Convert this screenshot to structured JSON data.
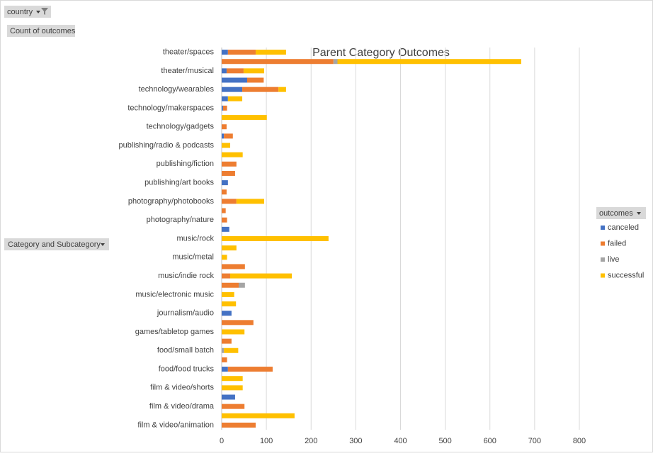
{
  "chart_data": {
    "type": "bar",
    "orientation": "horizontal",
    "stacked": true,
    "title": "Parent Category Outcomes",
    "filter_button": "country",
    "values_field": "Count of outcomes",
    "axis_field": "Category and Subcategory",
    "legend_title": "outcomes",
    "categories": [
      "theater/spaces",
      null,
      "theater/musical",
      null,
      "technology/wearables",
      null,
      "technology/makerspaces",
      null,
      "technology/gadgets",
      null,
      "publishing/radio & podcasts",
      null,
      "publishing/fiction",
      null,
      "publishing/art books",
      null,
      "photography/photobooks",
      null,
      "photography/nature",
      null,
      "music/rock",
      null,
      "music/metal",
      null,
      "music/indie rock",
      null,
      "music/electronic music",
      null,
      "journalism/audio",
      null,
      "games/tabletop games",
      null,
      "food/small batch",
      null,
      "food/food trucks",
      null,
      "film & video/shorts",
      null,
      "film & video/drama",
      null,
      "film & video/animation"
    ],
    "series": [
      {
        "name": "canceled",
        "color": "#4472c4",
        "values": [
          14,
          0,
          11,
          57,
          46,
          14,
          3,
          0,
          0,
          5,
          0,
          0,
          0,
          0,
          14,
          0,
          0,
          0,
          0,
          17,
          0,
          0,
          0,
          0,
          0,
          0,
          0,
          0,
          22,
          0,
          0,
          0,
          0,
          0,
          14,
          0,
          0,
          30,
          0,
          0,
          0
        ]
      },
      {
        "name": "failed",
        "color": "#ed7d31",
        "values": [
          62,
          250,
          38,
          37,
          81,
          0,
          9,
          0,
          11,
          20,
          0,
          0,
          33,
          30,
          0,
          11,
          33,
          9,
          12,
          0,
          0,
          0,
          0,
          52,
          19,
          38,
          0,
          0,
          0,
          71,
          0,
          22,
          0,
          12,
          100,
          0,
          0,
          0,
          51,
          0,
          76
        ]
      },
      {
        "name": "live",
        "color": "#a5a5a5",
        "values": [
          0,
          9,
          0,
          0,
          0,
          0,
          0,
          0,
          0,
          0,
          0,
          0,
          0,
          0,
          0,
          0,
          0,
          0,
          0,
          0,
          0,
          0,
          0,
          0,
          0,
          14,
          0,
          0,
          0,
          0,
          0,
          0,
          5,
          0,
          0,
          0,
          0,
          0,
          0,
          0,
          0
        ]
      },
      {
        "name": "successful",
        "color": "#ffc000",
        "values": [
          68,
          411,
          46,
          0,
          17,
          32,
          0,
          101,
          0,
          0,
          19,
          47,
          0,
          0,
          0,
          0,
          62,
          0,
          0,
          0,
          239,
          33,
          12,
          0,
          138,
          0,
          28,
          32,
          0,
          0,
          51,
          0,
          32,
          0,
          0,
          47,
          47,
          0,
          0,
          163,
          0
        ]
      }
    ],
    "xlim": [
      0,
      800
    ],
    "xticks": [
      0,
      100,
      200,
      300,
      400,
      500,
      600,
      700,
      800
    ],
    "grid": true,
    "legend": "right"
  }
}
